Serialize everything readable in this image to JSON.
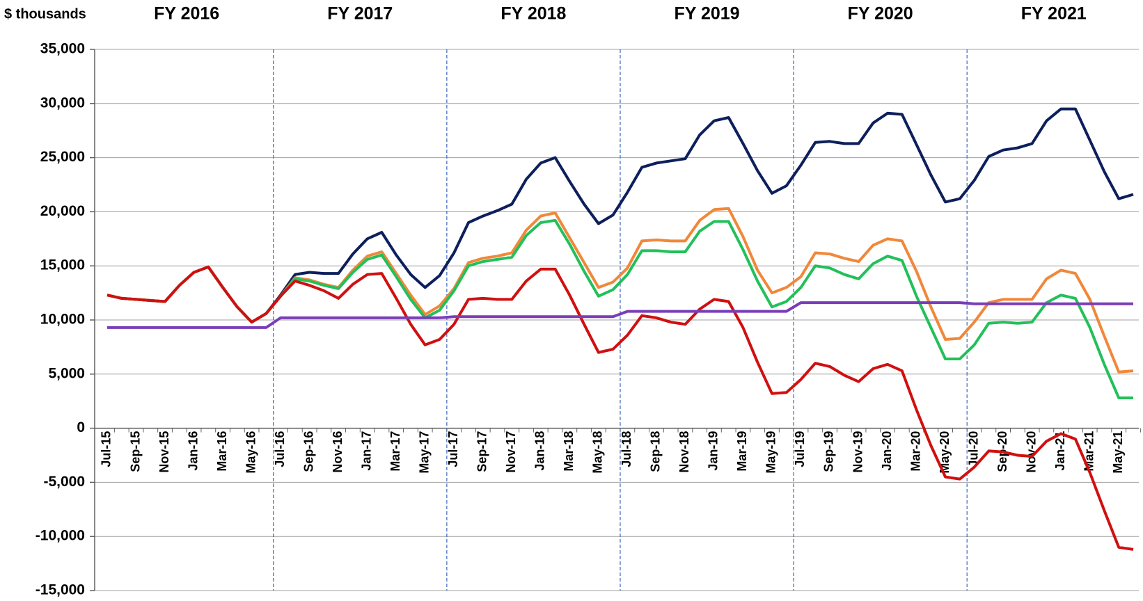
{
  "chart_data": {
    "type": "line",
    "y_label": "$ thousands",
    "period_labels": [
      "FY 2016",
      "FY 2017",
      "FY 2018",
      "FY 2019",
      "FY 2020",
      "FY 2021"
    ],
    "categories": [
      "Jul-15",
      null,
      "Sep-15",
      null,
      "Nov-15",
      null,
      "Jan-16",
      null,
      "Mar-16",
      null,
      "May-16",
      null,
      "Jul-16",
      null,
      "Sep-16",
      null,
      "Nov-16",
      null,
      "Jan-17",
      null,
      "Mar-17",
      null,
      "May-17",
      null,
      "Jul-17",
      null,
      "Sep-17",
      null,
      "Nov-17",
      null,
      "Jan-18",
      null,
      "Mar-18",
      null,
      "May-18",
      null,
      "Jul-18",
      null,
      "Sep-18",
      null,
      "Nov-18",
      null,
      "Jan-19",
      null,
      "Mar-19",
      null,
      "May-19",
      null,
      "Jul-19",
      null,
      "Sep-19",
      null,
      "Nov-19",
      null,
      "Jan-20",
      null,
      "Mar-20",
      null,
      "May-20",
      null,
      "Jul-20",
      null,
      "Sep-20",
      null,
      "Nov-20",
      null,
      "Jan-21",
      null,
      "Mar-21",
      null,
      "May-21",
      null
    ],
    "series": [
      {
        "color": "#0d1f5c",
        "values": [
          12300,
          12000,
          11900,
          11800,
          11700,
          13200,
          14400,
          14900,
          13000,
          11200,
          9800,
          10600,
          12300,
          14200,
          14400,
          14300,
          14300,
          16100,
          17500,
          18100,
          16000,
          14200,
          13000,
          14100,
          16200,
          19000,
          19600,
          20100,
          20700,
          23000,
          24500,
          25000,
          22800,
          20700,
          18900,
          19700,
          21800,
          24100,
          24500,
          24700,
          24900,
          27100,
          28400,
          28700,
          26300,
          23800,
          21700,
          22400,
          24300,
          26400,
          26500,
          26300,
          26300,
          28200,
          29100,
          29000,
          26200,
          23400,
          20900,
          21200,
          22900,
          25100,
          25700,
          25900,
          26300,
          28400,
          29500,
          29500,
          26600,
          23700,
          21200,
          21600
        ]
      },
      {
        "color": "#f0883a",
        "values": [
          12300,
          12000,
          11900,
          11800,
          11700,
          13200,
          14400,
          14900,
          13000,
          11200,
          9800,
          10600,
          12200,
          13900,
          13700,
          13300,
          13000,
          14600,
          15900,
          16300,
          14300,
          12300,
          10500,
          11300,
          12900,
          15300,
          15700,
          15900,
          16200,
          18300,
          19600,
          19900,
          17600,
          15300,
          13000,
          13500,
          14800,
          17300,
          17400,
          17300,
          17300,
          19200,
          20200,
          20300,
          17700,
          14600,
          12500,
          13000,
          14000,
          16200,
          16100,
          15700,
          15400,
          16900,
          17500,
          17300,
          14500,
          11200,
          8200,
          8300,
          9800,
          11600,
          11900,
          11900,
          11900,
          13800,
          14600,
          14300,
          11900,
          8500,
          5200,
          5300
        ]
      },
      {
        "color": "#22c05a",
        "values": [
          12300,
          12000,
          11900,
          11800,
          11700,
          13200,
          14400,
          14900,
          13000,
          11200,
          9800,
          10600,
          12200,
          13800,
          13600,
          13200,
          12900,
          14400,
          15600,
          16000,
          14000,
          11900,
          10200,
          10900,
          12700,
          15000,
          15400,
          15600,
          15800,
          17800,
          19000,
          19200,
          17000,
          14500,
          12200,
          12800,
          14200,
          16400,
          16400,
          16300,
          16300,
          18200,
          19100,
          19100,
          16500,
          13600,
          11200,
          11700,
          13000,
          15000,
          14800,
          14200,
          13800,
          15200,
          15900,
          15500,
          12200,
          9300,
          6400,
          6400,
          7700,
          9700,
          9800,
          9700,
          9800,
          11600,
          12300,
          12000,
          9300,
          5900,
          2800,
          2800
        ]
      },
      {
        "color": "#d01010",
        "values": [
          12300,
          12000,
          11900,
          11800,
          11700,
          13200,
          14400,
          14900,
          13000,
          11200,
          9800,
          10600,
          12200,
          13600,
          13200,
          12700,
          12000,
          13300,
          14200,
          14300,
          12000,
          9600,
          7700,
          8200,
          9600,
          11900,
          12000,
          11900,
          11900,
          13600,
          14700,
          14700,
          12300,
          9600,
          7000,
          7300,
          8600,
          10400,
          10200,
          9800,
          9600,
          11000,
          11900,
          11700,
          9300,
          6100,
          3200,
          3300,
          4500,
          6000,
          5700,
          4900,
          4300,
          5500,
          5900,
          5300,
          1700,
          -1600,
          -4500,
          -4700,
          -3600,
          -2100,
          -2200,
          -2500,
          -2600,
          -1200,
          -500,
          -1000,
          -4100,
          -7600,
          -11000,
          -11200
        ]
      },
      {
        "color": "#7a3db8",
        "values": [
          9300,
          9300,
          9300,
          9300,
          9300,
          9300,
          9300,
          9300,
          9300,
          9300,
          9300,
          9300,
          10200,
          10200,
          10200,
          10200,
          10200,
          10200,
          10200,
          10200,
          10200,
          10200,
          10200,
          10200,
          10300,
          10300,
          10300,
          10300,
          10300,
          10300,
          10300,
          10300,
          10300,
          10300,
          10300,
          10300,
          10800,
          10800,
          10800,
          10800,
          10800,
          10800,
          10800,
          10800,
          10800,
          10800,
          10800,
          10800,
          11600,
          11600,
          11600,
          11600,
          11600,
          11600,
          11600,
          11600,
          11600,
          11600,
          11600,
          11600,
          11500,
          11500,
          11500,
          11500,
          11500,
          11500,
          11500,
          11500,
          11500,
          11500,
          11500,
          11500
        ]
      }
    ],
    "ylim": [
      -15000,
      35000
    ],
    "yticks": [
      {
        "value": -15000,
        "label": "-15,000"
      },
      {
        "value": -10000,
        "label": "-10,000"
      },
      {
        "value": -5000,
        "label": "-5,000"
      },
      0,
      {
        "value": 5000,
        "label": "5,000"
      },
      {
        "value": 10000,
        "label": "10,000"
      },
      {
        "value": 15000,
        "label": "15,000"
      },
      {
        "value": 20000,
        "label": "20,000"
      },
      {
        "value": 25000,
        "label": "25,000"
      },
      {
        "value": 30000,
        "label": "30,000"
      },
      {
        "value": 35000,
        "label": "35,000"
      }
    ],
    "grid": true
  }
}
